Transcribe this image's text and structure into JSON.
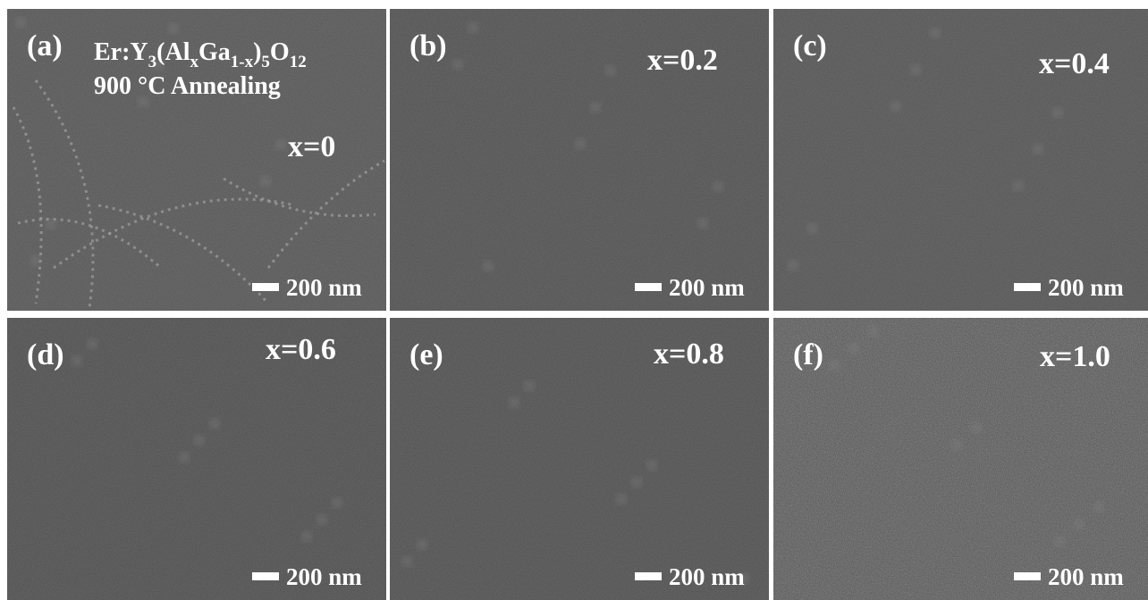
{
  "figure": {
    "formula": [
      {
        "text": "Er:Y"
      },
      {
        "text": "3",
        "sub": true
      },
      {
        "text": "(Al"
      },
      {
        "text": "x",
        "sub": true
      },
      {
        "text": "Ga"
      },
      {
        "text": "1-x",
        "sub": true
      },
      {
        "text": ")"
      },
      {
        "text": "5",
        "sub": true
      },
      {
        "text": "O"
      },
      {
        "text": "12",
        "sub": true
      }
    ],
    "annealing": "900 °C Annealing",
    "panels": [
      {
        "label": "(a)",
        "composition": "x=0",
        "scale_bar": "200 nm"
      },
      {
        "label": "(b)",
        "composition": "x=0.2",
        "scale_bar": "200 nm"
      },
      {
        "label": "(c)",
        "composition": "x=0.4",
        "scale_bar": "200 nm"
      },
      {
        "label": "(d)",
        "composition": "x=0.6",
        "scale_bar": "200 nm"
      },
      {
        "label": "(e)",
        "composition": "x=0.8",
        "scale_bar": "200 nm"
      },
      {
        "label": "(f)",
        "composition": "x=1.0",
        "scale_bar": "200 nm"
      }
    ]
  }
}
